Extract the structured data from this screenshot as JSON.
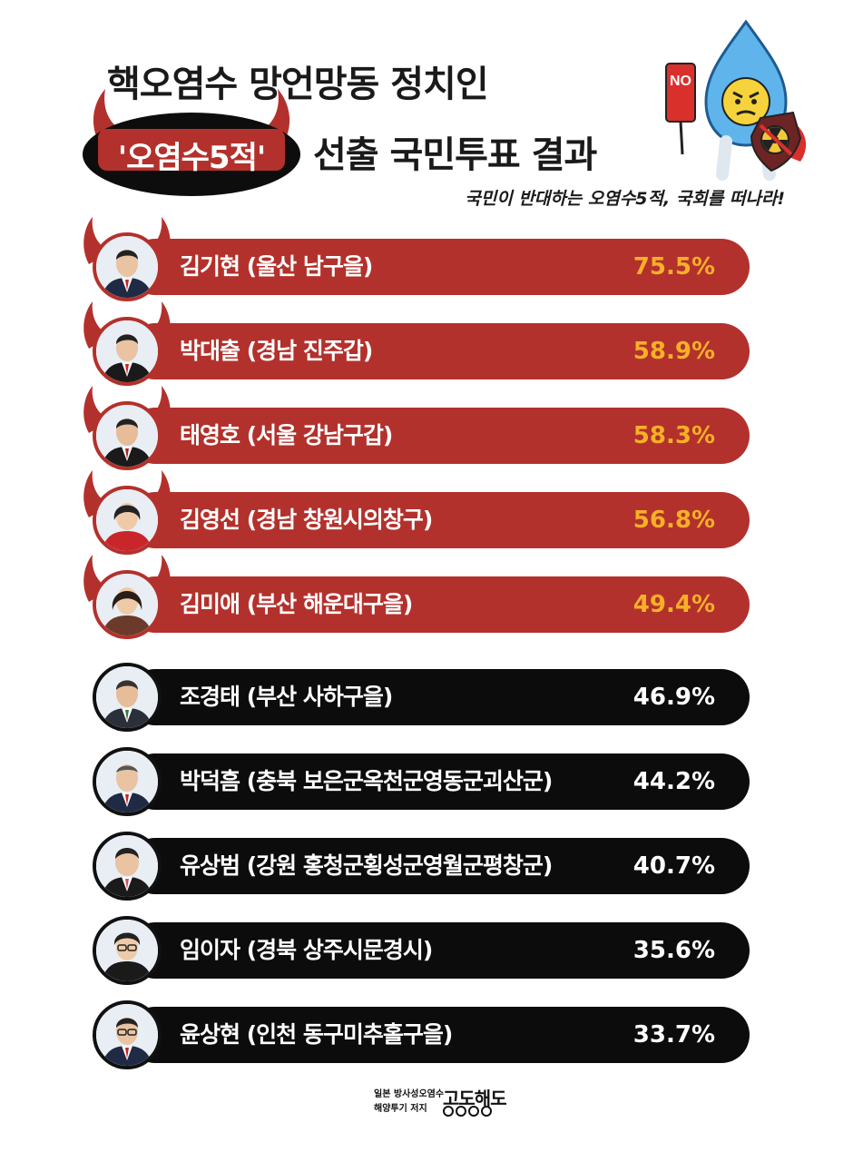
{
  "header": {
    "title_line1": "핵오염수 망언망동 정치인",
    "badge": "'오염수5적'",
    "title_line2": "선출 국민투표 결과",
    "subtitle": "국민이 반대하는 오염수5적, 국회를 떠나라!",
    "mascot_sign": "NO"
  },
  "colors": {
    "red_bar": "#b3312c",
    "black_bar": "#0c0c0c",
    "highlight_percent": "#f6b028"
  },
  "rows": [
    {
      "name": "김기현 (울산 남구을)",
      "percent": "75.5%",
      "style": "red"
    },
    {
      "name": "박대출 (경남 진주갑)",
      "percent": "58.9%",
      "style": "red"
    },
    {
      "name": "태영호 (서울 강남구갑)",
      "percent": "58.3%",
      "style": "red"
    },
    {
      "name": "김영선 (경남 창원시의창구)",
      "percent": "56.8%",
      "style": "red"
    },
    {
      "name": "김미애 (부산 해운대구을)",
      "percent": "49.4%",
      "style": "red"
    },
    {
      "name": "조경태 (부산 사하구을)",
      "percent": "46.9%",
      "style": "black"
    },
    {
      "name": "박덕흠 (충북 보은군옥천군영동군괴산군)",
      "percent": "44.2%",
      "style": "black"
    },
    {
      "name": "유상범 (강원 홍청군횡성군영월군평창군)",
      "percent": "40.7%",
      "style": "black"
    },
    {
      "name": "임이자 (경북 상주시문경시)",
      "percent": "35.6%",
      "style": "black"
    },
    {
      "name": "윤상현 (인천 동구미추홀구을)",
      "percent": "33.7%",
      "style": "black"
    }
  ],
  "footer": {
    "line1": "일본 방사성오염수",
    "line2": "해양투기 저지",
    "brand": "고도해도"
  }
}
